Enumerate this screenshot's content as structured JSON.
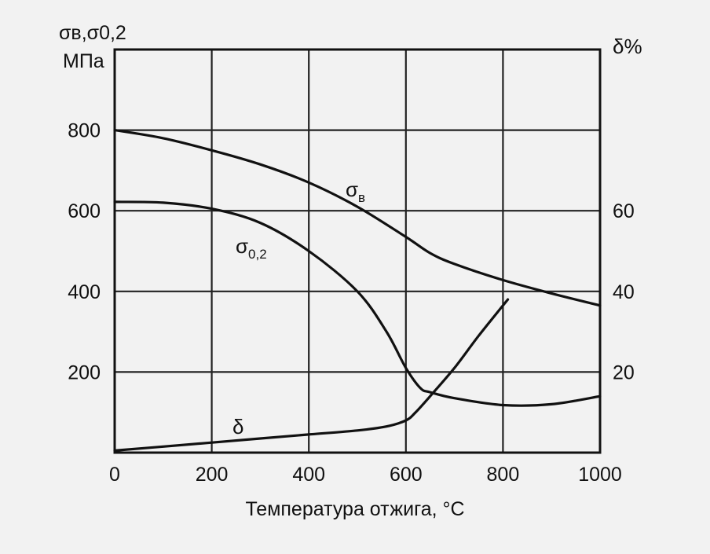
{
  "chart_data": {
    "type": "line",
    "xlabel": "Температура отжига, °С",
    "ylabel_left_line1": "σв,σ0,2",
    "ylabel_left_line2": "МПа",
    "ylabel_right": "δ%",
    "xlim": [
      0,
      1000
    ],
    "ylim_left": [
      0,
      1000
    ],
    "ylim_right": [
      0,
      100
    ],
    "x_ticks": [
      0,
      200,
      400,
      600,
      800,
      1000
    ],
    "y_left_ticks": [
      200,
      400,
      600,
      800
    ],
    "y_right_ticks": [
      20,
      40,
      60
    ],
    "grid": true,
    "series": [
      {
        "name": "σв",
        "axis": "left",
        "x": [
          0,
          100,
          200,
          300,
          400,
          500,
          600,
          650,
          700,
          800,
          900,
          1000
        ],
        "values": [
          800,
          780,
          750,
          715,
          670,
          610,
          535,
          495,
          468,
          428,
          395,
          365
        ]
      },
      {
        "name": "σ0,2",
        "axis": "left",
        "x": [
          0,
          100,
          200,
          300,
          400,
          500,
          560,
          600,
          630,
          650,
          700,
          800,
          900,
          1000
        ],
        "values": [
          622,
          620,
          605,
          570,
          500,
          400,
          300,
          210,
          160,
          150,
          135,
          118,
          120,
          140
        ]
      },
      {
        "name": "δ",
        "axis": "right",
        "x": [
          0,
          100,
          200,
          300,
          400,
          500,
          560,
          600,
          620,
          650,
          700,
          750,
          810
        ],
        "values": [
          0.5,
          1.5,
          2.5,
          3.5,
          4.5,
          5.5,
          6.5,
          8,
          10,
          14,
          21,
          29,
          38
        ]
      }
    ]
  }
}
